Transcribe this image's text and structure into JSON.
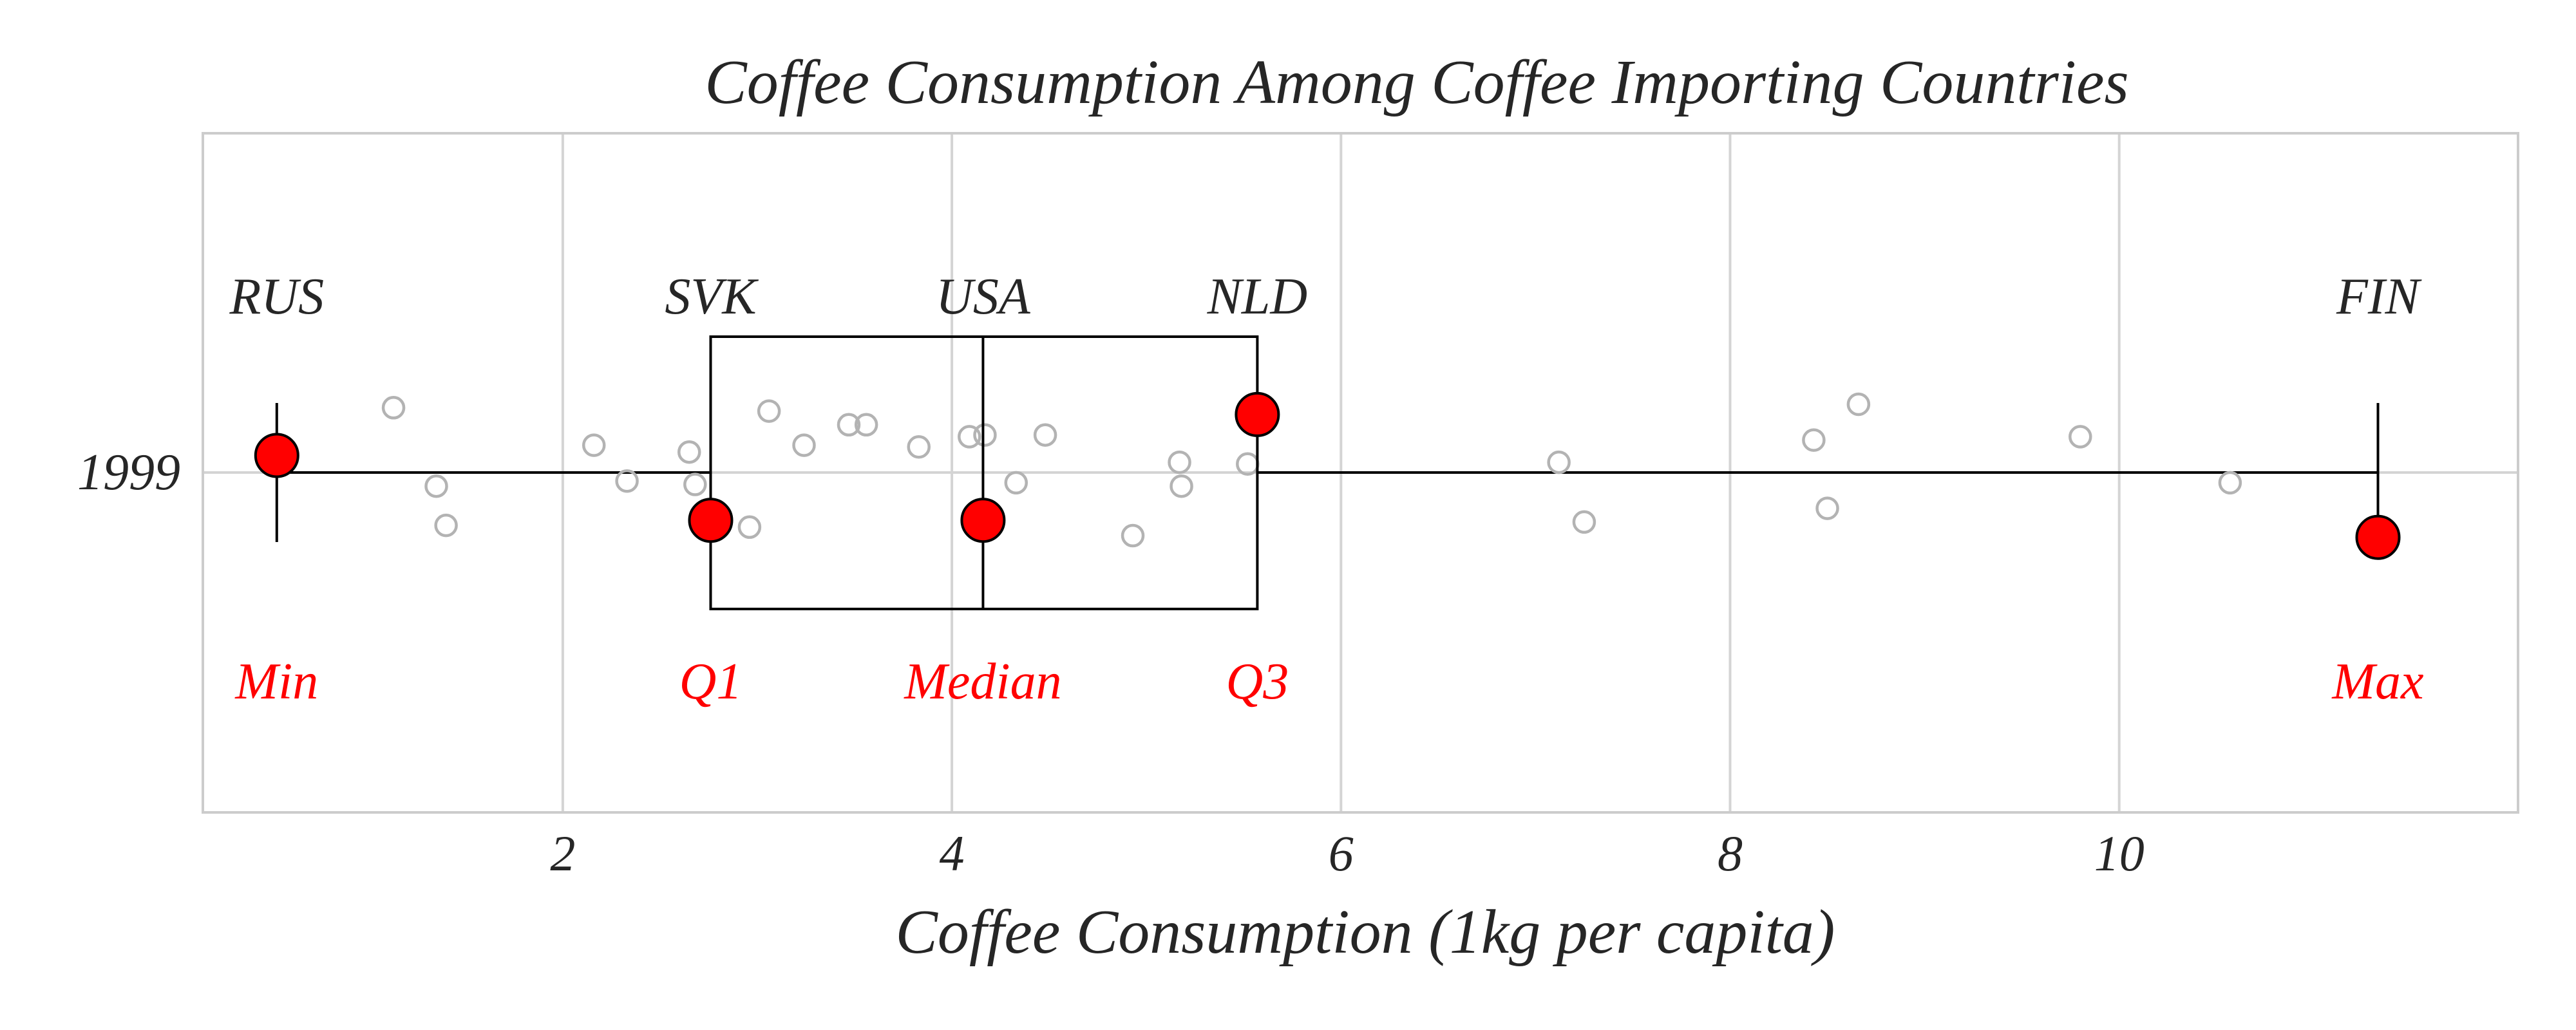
{
  "chart_data": {
    "type": "boxplot",
    "title": "Coffee Consumption Among Coffee Importing Countries",
    "xlabel": "Coffee Consumption (1kg per capita)",
    "ylabel": "",
    "category": "1999",
    "xlim": [
      0.15,
      12.05
    ],
    "x_ticks": [
      2,
      4,
      6,
      8,
      10
    ],
    "grid": true,
    "box": {
      "min": 0.53,
      "q1": 2.76,
      "median": 4.16,
      "q3": 5.57,
      "max": 11.33
    },
    "highlights": [
      {
        "stat": "Min",
        "country": "RUS",
        "value": 0.53,
        "offset": -0.1
      },
      {
        "stat": "Q1",
        "country": "SVK",
        "value": 2.76,
        "offset": 0.28
      },
      {
        "stat": "Median",
        "country": "USA",
        "value": 4.16,
        "offset": 0.28
      },
      {
        "stat": "Q3",
        "country": "NLD",
        "value": 5.57,
        "offset": -0.34
      },
      {
        "stat": "Max",
        "country": "FIN",
        "value": 11.33,
        "offset": 0.38
      }
    ],
    "points": [
      {
        "x": 1.13,
        "offset": -0.38
      },
      {
        "x": 1.35,
        "offset": 0.08
      },
      {
        "x": 1.4,
        "offset": 0.31
      },
      {
        "x": 2.16,
        "offset": -0.16
      },
      {
        "x": 2.33,
        "offset": 0.05
      },
      {
        "x": 2.65,
        "offset": -0.12
      },
      {
        "x": 2.68,
        "offset": 0.07
      },
      {
        "x": 2.96,
        "offset": 0.32
      },
      {
        "x": 3.06,
        "offset": -0.36
      },
      {
        "x": 3.24,
        "offset": -0.16
      },
      {
        "x": 3.47,
        "offset": -0.28
      },
      {
        "x": 3.56,
        "offset": -0.28
      },
      {
        "x": 3.83,
        "offset": -0.15
      },
      {
        "x": 4.09,
        "offset": -0.21
      },
      {
        "x": 4.17,
        "offset": -0.22
      },
      {
        "x": 4.33,
        "offset": 0.06
      },
      {
        "x": 4.48,
        "offset": -0.22
      },
      {
        "x": 4.93,
        "offset": 0.37
      },
      {
        "x": 5.17,
        "offset": -0.06
      },
      {
        "x": 5.18,
        "offset": 0.08
      },
      {
        "x": 5.52,
        "offset": -0.05
      },
      {
        "x": 7.12,
        "offset": -0.06
      },
      {
        "x": 7.25,
        "offset": 0.29
      },
      {
        "x": 8.43,
        "offset": -0.19
      },
      {
        "x": 8.5,
        "offset": 0.21
      },
      {
        "x": 8.66,
        "offset": -0.4
      },
      {
        "x": 9.8,
        "offset": -0.21
      },
      {
        "x": 10.57,
        "offset": 0.06
      }
    ],
    "colors": {
      "highlight_fill": "#ff0000",
      "highlight_label": "#ff0000",
      "country_label": "#262626",
      "point_stroke": "#b3b3b3",
      "grid": "#d4d4d4",
      "frame": "#cccccc",
      "box_line": "#000000",
      "text": "#262626"
    }
  }
}
